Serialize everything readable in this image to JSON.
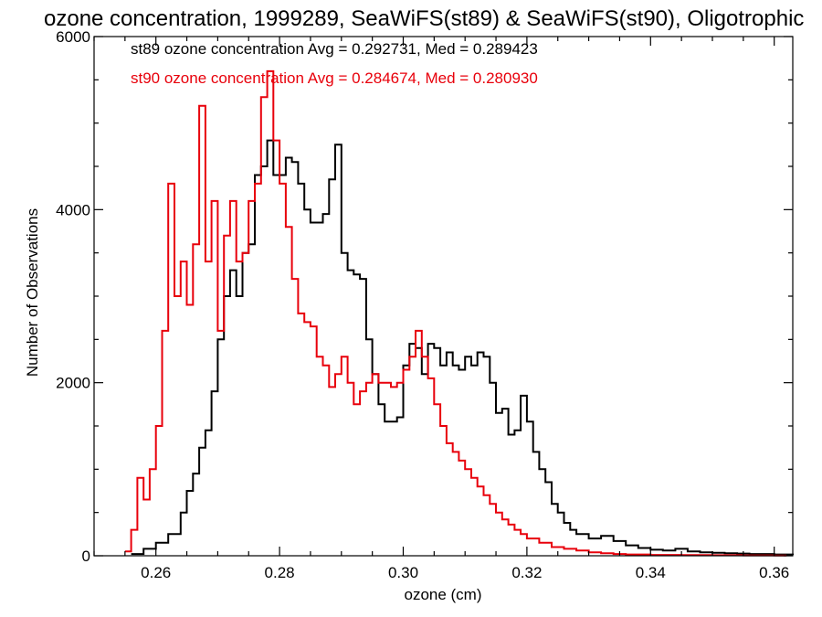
{
  "chart_data": {
    "type": "line",
    "title": "ozone concentration, 1999289, SeaWiFS(st89) & SeaWiFS(st90), Oligotrophic",
    "xlabel": "ozone (cm)",
    "ylabel": "Number of Observations",
    "xlim": [
      0.25,
      0.363
    ],
    "ylim": [
      0,
      6000
    ],
    "x_ticks": [
      "0.26",
      "0.28",
      "0.30",
      "0.32",
      "0.34",
      "0.36"
    ],
    "y_ticks": [
      "0",
      "2000",
      "4000",
      "6000"
    ],
    "grid": false,
    "step": true,
    "series": [
      {
        "name": "st89",
        "color": "#000000",
        "legend": "st89 ozone concentration Avg = 0.292731, Med = 0.289423",
        "x": [
          0.256,
          0.258,
          0.26,
          0.262,
          0.264,
          0.265,
          0.266,
          0.267,
          0.268,
          0.269,
          0.27,
          0.271,
          0.272,
          0.273,
          0.274,
          0.275,
          0.276,
          0.277,
          0.278,
          0.279,
          0.28,
          0.281,
          0.282,
          0.283,
          0.284,
          0.285,
          0.286,
          0.287,
          0.288,
          0.289,
          0.29,
          0.291,
          0.292,
          0.293,
          0.294,
          0.295,
          0.296,
          0.297,
          0.298,
          0.299,
          0.3,
          0.301,
          0.302,
          0.303,
          0.304,
          0.305,
          0.306,
          0.307,
          0.308,
          0.309,
          0.31,
          0.311,
          0.312,
          0.313,
          0.314,
          0.315,
          0.316,
          0.317,
          0.318,
          0.319,
          0.32,
          0.321,
          0.322,
          0.323,
          0.324,
          0.325,
          0.326,
          0.327,
          0.328,
          0.33,
          0.332,
          0.334,
          0.336,
          0.338,
          0.34,
          0.342,
          0.344,
          0.346,
          0.348,
          0.35,
          0.352,
          0.354,
          0.356,
          0.36,
          0.363
        ],
        "y": [
          20,
          80,
          150,
          250,
          500,
          750,
          950,
          1250,
          1450,
          1900,
          2500,
          3000,
          3300,
          3000,
          3500,
          3600,
          4400,
          4500,
          4800,
          4400,
          4400,
          4600,
          4550,
          4300,
          4000,
          3850,
          3850,
          3950,
          4350,
          4750,
          3500,
          3300,
          3250,
          3200,
          2500,
          2100,
          1750,
          1550,
          1550,
          1600,
          2200,
          2450,
          2400,
          2100,
          2450,
          2400,
          2200,
          2350,
          2200,
          2150,
          2300,
          2200,
          2350,
          2300,
          2000,
          1650,
          1700,
          1400,
          1450,
          1850,
          1550,
          1200,
          1000,
          850,
          600,
          500,
          380,
          300,
          250,
          200,
          230,
          170,
          120,
          90,
          70,
          60,
          80,
          50,
          40,
          35,
          30,
          25,
          20,
          15,
          10
        ]
      },
      {
        "name": "st90",
        "color": "#e8000b",
        "legend": "st90 ozone concentration Avg = 0.284674, Med = 0.280930",
        "x": [
          0.255,
          0.256,
          0.257,
          0.258,
          0.259,
          0.26,
          0.261,
          0.262,
          0.263,
          0.264,
          0.265,
          0.266,
          0.267,
          0.268,
          0.269,
          0.27,
          0.271,
          0.272,
          0.273,
          0.274,
          0.275,
          0.276,
          0.277,
          0.278,
          0.279,
          0.28,
          0.281,
          0.282,
          0.283,
          0.284,
          0.285,
          0.286,
          0.287,
          0.288,
          0.289,
          0.29,
          0.291,
          0.292,
          0.293,
          0.294,
          0.295,
          0.296,
          0.297,
          0.298,
          0.299,
          0.3,
          0.301,
          0.302,
          0.303,
          0.304,
          0.305,
          0.306,
          0.307,
          0.308,
          0.309,
          0.31,
          0.311,
          0.312,
          0.313,
          0.314,
          0.315,
          0.316,
          0.317,
          0.318,
          0.319,
          0.32,
          0.322,
          0.324,
          0.326,
          0.328,
          0.33,
          0.332,
          0.334,
          0.336,
          0.34,
          0.345,
          0.35,
          0.355,
          0.36
        ],
        "y": [
          50,
          300,
          900,
          650,
          1000,
          1500,
          2600,
          4300,
          3000,
          3400,
          2900,
          3600,
          5200,
          3400,
          4100,
          2600,
          3700,
          4100,
          3400,
          3500,
          4100,
          4300,
          5300,
          5600,
          4800,
          4300,
          3800,
          3200,
          2800,
          2700,
          2650,
          2300,
          2200,
          1950,
          2100,
          2300,
          2000,
          1750,
          1900,
          2000,
          2100,
          2000,
          2000,
          1950,
          2000,
          2150,
          2300,
          2600,
          2300,
          2050,
          1750,
          1500,
          1300,
          1200,
          1100,
          1000,
          900,
          800,
          700,
          600,
          500,
          420,
          360,
          300,
          250,
          200,
          150,
          100,
          80,
          60,
          40,
          30,
          20,
          15,
          10,
          8,
          6,
          4,
          2
        ]
      }
    ]
  }
}
